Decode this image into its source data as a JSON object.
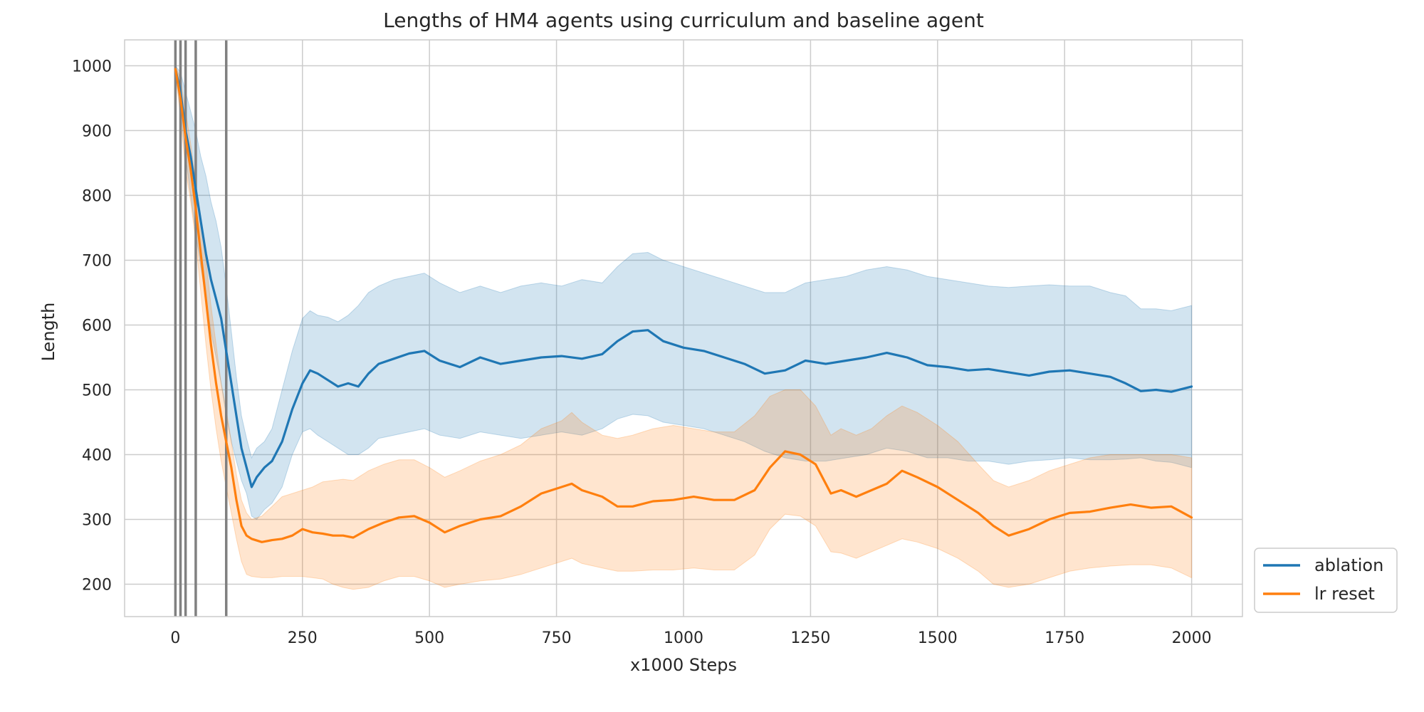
{
  "chart_data": {
    "type": "line",
    "title": "Lengths of HM4 agents using curriculum and baseline agent",
    "xlabel": "x1000 Steps",
    "ylabel": "Length",
    "xlim": [
      -100,
      2100
    ],
    "ylim": [
      150,
      1040
    ],
    "xticks": [
      0,
      250,
      500,
      750,
      1000,
      1250,
      1500,
      1750,
      2000
    ],
    "yticks": [
      200,
      300,
      400,
      500,
      600,
      700,
      800,
      900,
      1000
    ],
    "grid": true,
    "legend_position": "outside-bottom-right",
    "vertical_markers": [
      0,
      10,
      20,
      40,
      100
    ],
    "series": [
      {
        "name": "ablation",
        "color": "#1f77b4",
        "band_color": "#1f77b4",
        "x": [
          0,
          10,
          20,
          30,
          40,
          50,
          60,
          70,
          80,
          90,
          100,
          110,
          120,
          130,
          140,
          150,
          160,
          175,
          190,
          210,
          230,
          250,
          265,
          280,
          300,
          320,
          340,
          360,
          380,
          400,
          430,
          460,
          490,
          520,
          560,
          600,
          640,
          680,
          720,
          760,
          800,
          840,
          870,
          900,
          930,
          960,
          1000,
          1040,
          1080,
          1120,
          1160,
          1200,
          1240,
          1280,
          1320,
          1360,
          1400,
          1440,
          1480,
          1520,
          1560,
          1600,
          1640,
          1680,
          1720,
          1760,
          1800,
          1840,
          1870,
          1900,
          1930,
          1960,
          2000
        ],
        "y": [
          995,
          960,
          900,
          860,
          810,
          760,
          710,
          670,
          640,
          610,
          560,
          510,
          460,
          410,
          380,
          350,
          365,
          380,
          390,
          420,
          470,
          510,
          530,
          525,
          515,
          505,
          510,
          505,
          525,
          540,
          548,
          556,
          560,
          545,
          535,
          550,
          540,
          545,
          550,
          552,
          548,
          555,
          575,
          590,
          592,
          575,
          565,
          560,
          550,
          540,
          525,
          530,
          545,
          540,
          545,
          550,
          557,
          550,
          538,
          535,
          530,
          532,
          527,
          522,
          528,
          530,
          525,
          520,
          510,
          498,
          500,
          497,
          505
        ],
        "upper": [
          1000,
          990,
          960,
          930,
          900,
          860,
          830,
          790,
          760,
          720,
          660,
          590,
          520,
          460,
          425,
          395,
          410,
          420,
          440,
          500,
          560,
          610,
          622,
          615,
          612,
          605,
          615,
          630,
          650,
          660,
          670,
          675,
          680,
          665,
          650,
          660,
          650,
          660,
          665,
          660,
          670,
          665,
          690,
          710,
          712,
          700,
          690,
          680,
          670,
          660,
          650,
          650,
          665,
          670,
          675,
          685,
          690,
          685,
          675,
          670,
          665,
          660,
          658,
          660,
          662,
          660,
          660,
          650,
          645,
          625,
          625,
          622,
          630
        ],
        "lower": [
          990,
          930,
          860,
          800,
          740,
          690,
          640,
          590,
          550,
          510,
          460,
          420,
          390,
          360,
          340,
          305,
          300,
          315,
          325,
          350,
          400,
          435,
          440,
          430,
          420,
          410,
          400,
          400,
          410,
          425,
          430,
          435,
          440,
          430,
          425,
          435,
          430,
          425,
          430,
          435,
          430,
          440,
          455,
          462,
          460,
          450,
          445,
          440,
          430,
          420,
          405,
          395,
          390,
          390,
          395,
          400,
          410,
          405,
          395,
          395,
          390,
          390,
          385,
          390,
          392,
          395,
          392,
          392,
          393,
          395,
          390,
          388,
          380
        ]
      },
      {
        "name": "lr reset",
        "color": "#ff7f0e",
        "band_color": "#ff7f0e",
        "x": [
          0,
          10,
          20,
          30,
          40,
          50,
          60,
          70,
          80,
          90,
          100,
          110,
          120,
          130,
          140,
          150,
          170,
          190,
          210,
          230,
          250,
          270,
          290,
          310,
          330,
          350,
          380,
          410,
          440,
          470,
          500,
          530,
          560,
          600,
          640,
          680,
          720,
          760,
          780,
          800,
          840,
          870,
          900,
          940,
          980,
          1020,
          1060,
          1100,
          1140,
          1170,
          1200,
          1230,
          1260,
          1290,
          1310,
          1340,
          1370,
          1400,
          1430,
          1460,
          1500,
          1540,
          1580,
          1610,
          1640,
          1680,
          1720,
          1760,
          1800,
          1840,
          1880,
          1920,
          1960,
          2000
        ],
        "y": [
          995,
          950,
          890,
          840,
          780,
          710,
          640,
          570,
          510,
          460,
          420,
          380,
          330,
          290,
          275,
          270,
          265,
          268,
          270,
          275,
          285,
          280,
          278,
          275,
          275,
          272,
          285,
          295,
          303,
          305,
          295,
          280,
          290,
          300,
          305,
          320,
          340,
          350,
          355,
          345,
          335,
          320,
          320,
          328,
          330,
          335,
          330,
          330,
          345,
          380,
          405,
          400,
          385,
          340,
          345,
          335,
          345,
          355,
          375,
          365,
          350,
          330,
          310,
          290,
          275,
          285,
          300,
          310,
          312,
          318,
          323,
          318,
          320,
          303
        ],
        "upper": [
          1000,
          980,
          930,
          880,
          820,
          760,
          700,
          630,
          570,
          510,
          470,
          420,
          370,
          330,
          310,
          300,
          305,
          320,
          335,
          340,
          345,
          350,
          358,
          360,
          362,
          360,
          375,
          385,
          392,
          392,
          380,
          365,
          375,
          390,
          400,
          415,
          440,
          452,
          465,
          450,
          430,
          425,
          430,
          440,
          445,
          440,
          435,
          435,
          460,
          490,
          500,
          500,
          475,
          430,
          440,
          430,
          440,
          460,
          475,
          465,
          445,
          420,
          385,
          360,
          350,
          360,
          375,
          385,
          395,
          400,
          400,
          400,
          400,
          395
        ],
        "lower": [
          990,
          920,
          840,
          790,
          730,
          650,
          570,
          500,
          440,
          390,
          350,
          310,
          270,
          235,
          215,
          212,
          210,
          210,
          212,
          212,
          212,
          210,
          208,
          200,
          195,
          192,
          195,
          205,
          212,
          212,
          205,
          195,
          200,
          205,
          208,
          215,
          225,
          235,
          240,
          232,
          225,
          220,
          220,
          222,
          222,
          225,
          222,
          222,
          245,
          285,
          308,
          305,
          290,
          250,
          248,
          240,
          250,
          260,
          270,
          265,
          255,
          240,
          220,
          200,
          195,
          200,
          210,
          220,
          225,
          228,
          230,
          230,
          225,
          210
        ]
      }
    ]
  }
}
